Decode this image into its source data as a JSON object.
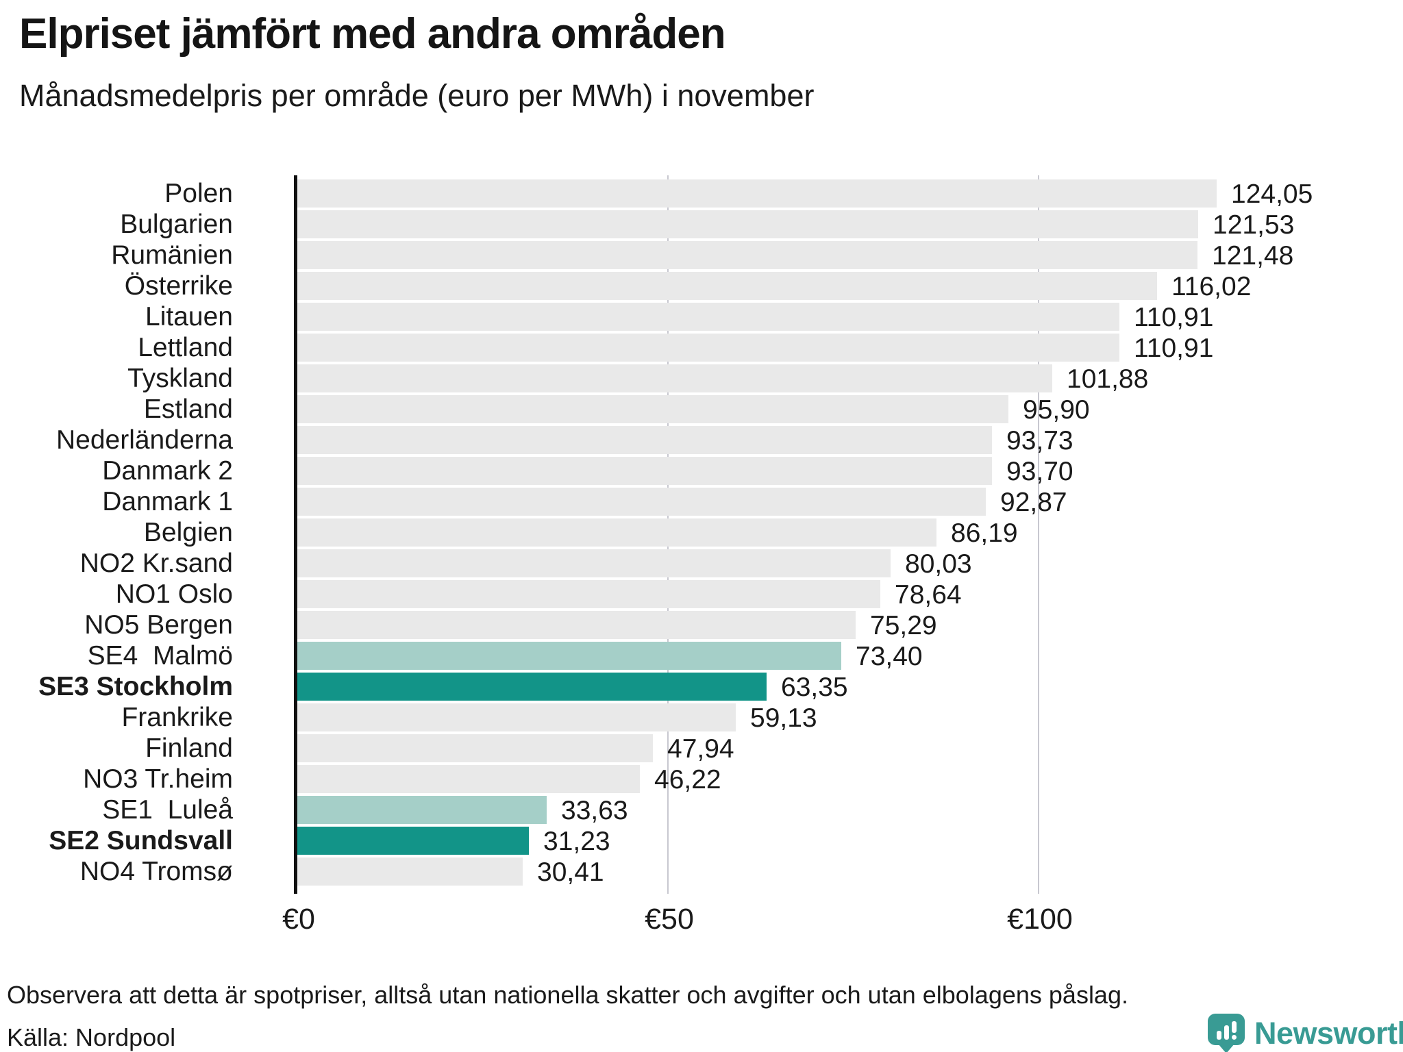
{
  "title": "Elpriset jämfört med andra områden",
  "subtitle": "Månadsmedelpris per område (euro per MWh) i november",
  "footnote": "Observera att detta är spotpriser, alltså utan nationella skatter och avgifter och utan elbolagens påslag.",
  "source": "Källa: Nordpool",
  "brand": {
    "name": "Newsworthy",
    "color": "#399b94"
  },
  "colors": {
    "bar_default": "#e9e9e9",
    "bar_highlight_light": "#a5cfc8",
    "bar_highlight_dark": "#129488",
    "axis": "#111111",
    "gridline": "#c8c8d0",
    "text": "#1a1a1a"
  },
  "chart_data": {
    "type": "bar",
    "orientation": "horizontal",
    "title": "Elpriset jämfört med andra områden",
    "subtitle": "Månadsmedelpris per område (euro per MWh) i november",
    "xlabel": "euro per MWh",
    "ylabel": "",
    "xlim": [
      0,
      149
    ],
    "grid": "vertical",
    "value_format": "comma-decimal",
    "ticks": [
      {
        "label": "€0",
        "value": 0
      },
      {
        "label": "€50",
        "value": 50
      },
      {
        "label": "€100",
        "value": 100
      }
    ],
    "rows": [
      {
        "label": "Polen",
        "value": 124.05,
        "display": "124,05",
        "color": "gray",
        "bold": false
      },
      {
        "label": "Bulgarien",
        "value": 121.53,
        "display": "121,53",
        "color": "gray",
        "bold": false
      },
      {
        "label": "Rumänien",
        "value": 121.48,
        "display": "121,48",
        "color": "gray",
        "bold": false
      },
      {
        "label": "Österrike",
        "value": 116.02,
        "display": "116,02",
        "color": "gray",
        "bold": false
      },
      {
        "label": "Litauen",
        "value": 110.91,
        "display": "110,91",
        "color": "gray",
        "bold": false
      },
      {
        "label": "Lettland",
        "value": 110.91,
        "display": "110,91",
        "color": "gray",
        "bold": false
      },
      {
        "label": "Tyskland",
        "value": 101.88,
        "display": "101,88",
        "color": "gray",
        "bold": false
      },
      {
        "label": "Estland",
        "value": 95.9,
        "display": "95,90",
        "color": "gray",
        "bold": false
      },
      {
        "label": "Nederländerna",
        "value": 93.73,
        "display": "93,73",
        "color": "gray",
        "bold": false
      },
      {
        "label": "Danmark 2",
        "value": 93.7,
        "display": "93,70",
        "color": "gray",
        "bold": false
      },
      {
        "label": "Danmark 1",
        "value": 92.87,
        "display": "92,87",
        "color": "gray",
        "bold": false
      },
      {
        "label": "Belgien",
        "value": 86.19,
        "display": "86,19",
        "color": "gray",
        "bold": false
      },
      {
        "label": "NO2 Kr.sand",
        "value": 80.03,
        "display": "80,03",
        "color": "gray",
        "bold": false
      },
      {
        "label": "NO1 Oslo",
        "value": 78.64,
        "display": "78,64",
        "color": "gray",
        "bold": false
      },
      {
        "label": "NO5 Bergen",
        "value": 75.29,
        "display": "75,29",
        "color": "gray",
        "bold": false
      },
      {
        "label": "SE4  Malmö",
        "value": 73.4,
        "display": "73,40",
        "color": "light",
        "bold": false
      },
      {
        "label": "SE3 Stockholm",
        "value": 63.35,
        "display": "63,35",
        "color": "dark",
        "bold": true
      },
      {
        "label": "Frankrike",
        "value": 59.13,
        "display": "59,13",
        "color": "gray",
        "bold": false
      },
      {
        "label": "Finland",
        "value": 47.94,
        "display": "47,94",
        "color": "gray",
        "bold": false
      },
      {
        "label": "NO3 Tr.heim",
        "value": 46.22,
        "display": "46,22",
        "color": "gray",
        "bold": false
      },
      {
        "label": "SE1  Luleå",
        "value": 33.63,
        "display": "33,63",
        "color": "light",
        "bold": false
      },
      {
        "label": "SE2 Sundsvall",
        "value": 31.23,
        "display": "31,23",
        "color": "dark",
        "bold": true
      },
      {
        "label": "NO4 Tromsø",
        "value": 30.41,
        "display": "30,41",
        "color": "gray",
        "bold": false
      }
    ]
  }
}
